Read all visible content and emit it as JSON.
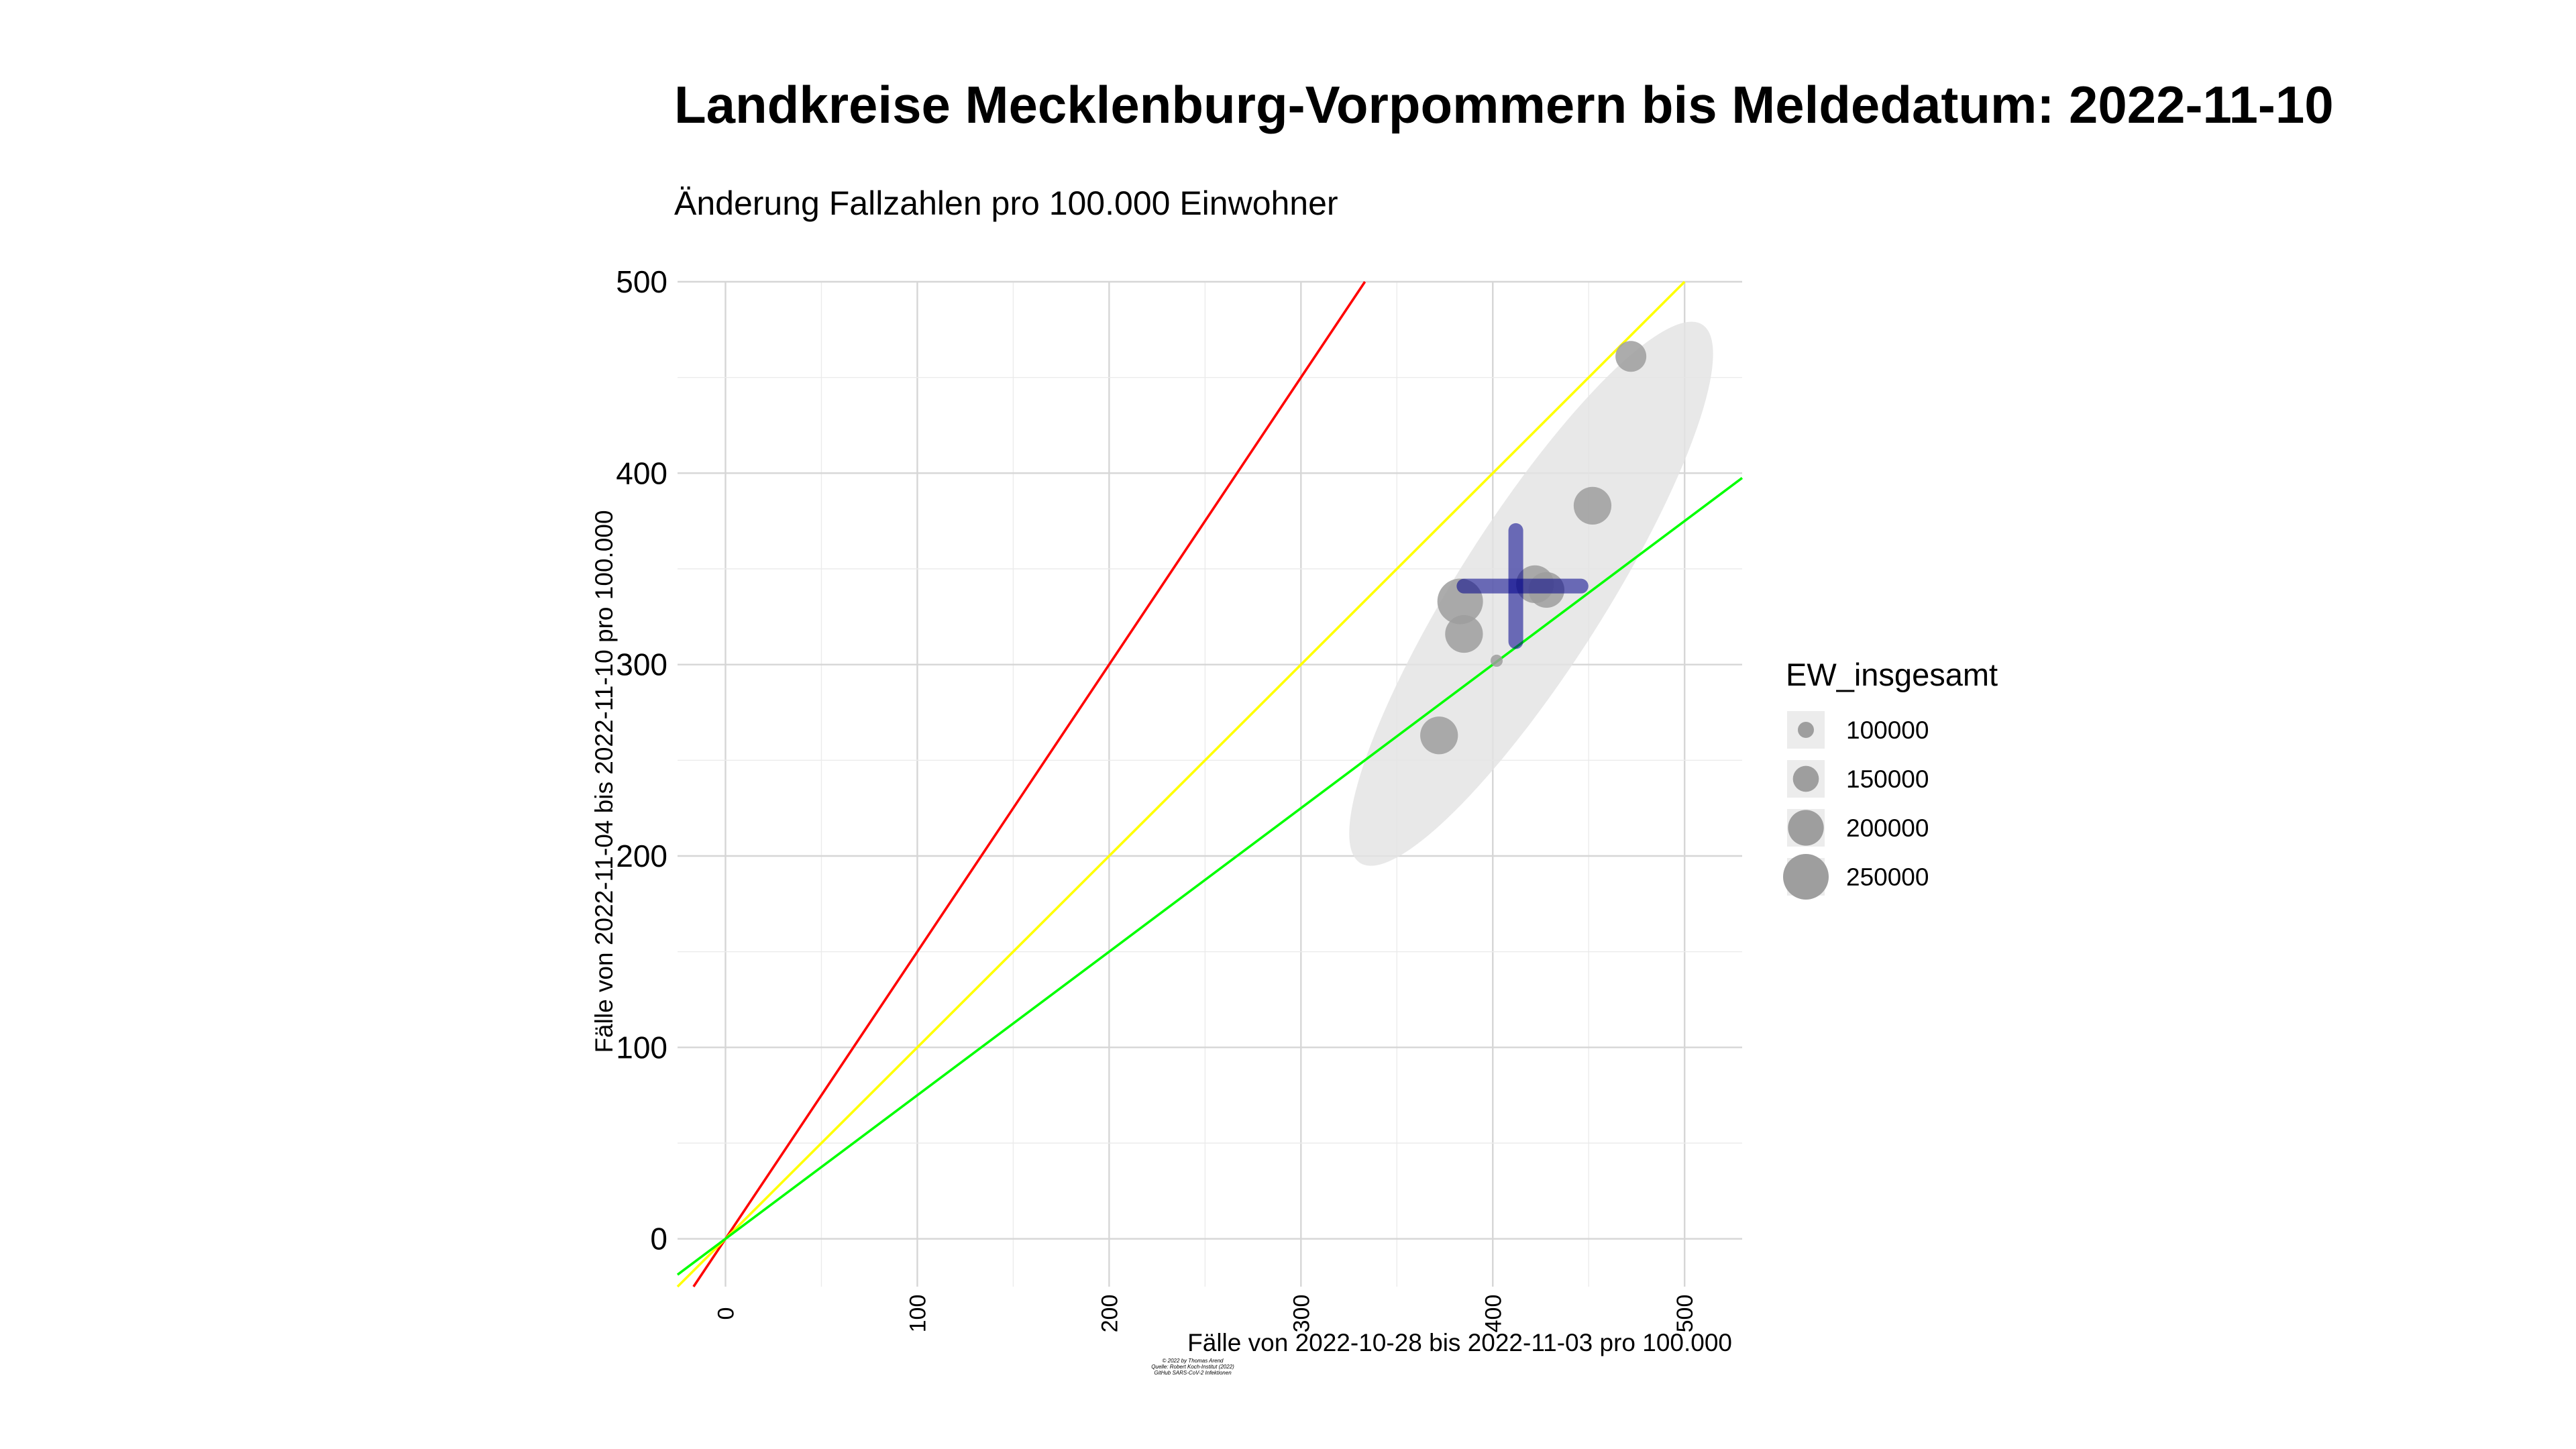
{
  "chart_data": {
    "type": "scatter",
    "title": "Landkreise Mecklenburg-Vorpommern bis Meldedatum: 2022-11-10",
    "subtitle": "Änderung Fallzahlen pro 100.000 Einwohner",
    "xlabel": "Fälle von 2022-10-28 bis 2022-11-03 pro 100.000",
    "ylabel": "Fälle von 2022-11-04 bis 2022-11-10 pro 100.000",
    "xlim": [
      -25,
      530
    ],
    "ylim": [
      -25,
      500
    ],
    "x_ticks": [
      0,
      100,
      200,
      300,
      400,
      500
    ],
    "x_tick_labels": [
      "0",
      "100",
      "200",
      "300",
      "400",
      "500"
    ],
    "y_ticks": [
      0,
      100,
      200,
      300,
      400,
      500
    ],
    "y_tick_labels": [
      "0",
      "100",
      "200",
      "300",
      "400",
      "500"
    ],
    "grid": true,
    "reference_lines": [
      {
        "slope": 1.5,
        "color": "#ff0000"
      },
      {
        "slope": 1.0,
        "color": "#ffff00"
      },
      {
        "slope": 0.75,
        "color": "#00ff00"
      }
    ],
    "points": [
      {
        "x": 472,
        "y": 461,
        "size": 175000
      },
      {
        "x": 452,
        "y": 383,
        "size": 210000
      },
      {
        "x": 383,
        "y": 333,
        "size": 250000
      },
      {
        "x": 385,
        "y": 316,
        "size": 210000
      },
      {
        "x": 372,
        "y": 263,
        "size": 210000
      },
      {
        "x": 402,
        "y": 302,
        "size": 80000
      },
      {
        "x": 422,
        "y": 342,
        "size": 210000
      },
      {
        "x": 428,
        "y": 339,
        "size": 200000
      }
    ],
    "mean_cross": {
      "x": 412,
      "y": 341,
      "x_range": [
        385,
        446
      ],
      "y_range": [
        312,
        370
      ],
      "color": "#00008b"
    },
    "ellipse": {
      "cx": 420,
      "cy": 337,
      "x_extent": [
        325,
        507
      ],
      "y_extent": [
        193,
        480
      ]
    },
    "point_color": "#9e9e9e",
    "legend": {
      "title": "EW_insgesamt",
      "position": "right",
      "entries": [
        {
          "label": "100000",
          "value": 100000
        },
        {
          "label": "150000",
          "value": 150000
        },
        {
          "label": "200000",
          "value": 200000
        },
        {
          "label": "250000",
          "value": 250000
        }
      ]
    },
    "caption_lines": [
      "© 2022 by Thomas Arend",
      "Quelle: Robert Koch-Institut (2022)",
      "GitHub SARS-CoV-2 Infektionen"
    ]
  }
}
